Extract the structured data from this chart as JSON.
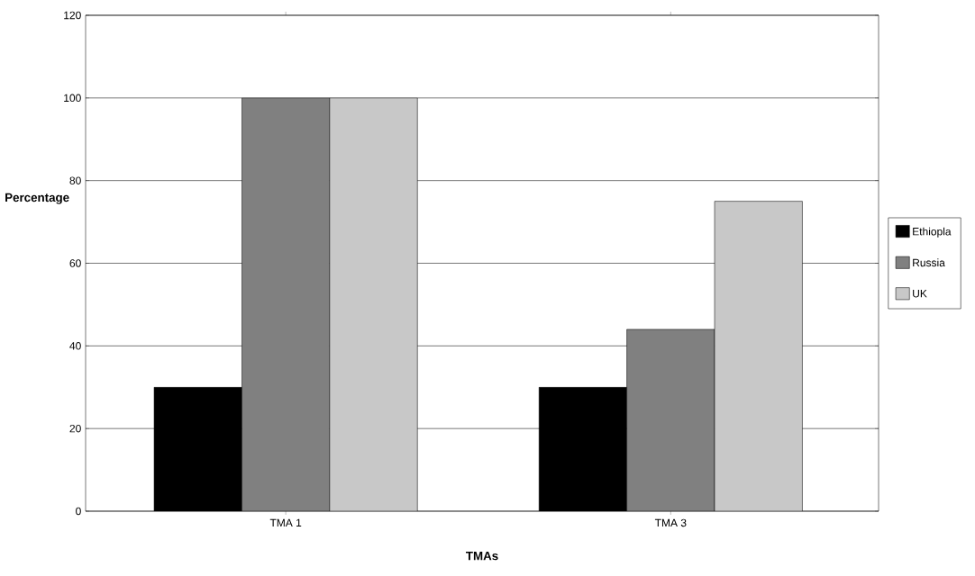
{
  "chart_data": {
    "type": "bar",
    "xlabel": "TMAs",
    "ylabel": "Percentage",
    "categories": [
      "TMA 1",
      "TMA 3"
    ],
    "series": [
      {
        "name": "Ethiopla",
        "color": "#000000",
        "values": [
          30,
          30
        ]
      },
      {
        "name": "Russia",
        "color": "#808080",
        "values": [
          100,
          44
        ]
      },
      {
        "name": "UK",
        "color": "#c8c8c8",
        "values": [
          100,
          75
        ]
      }
    ],
    "ylim": [
      0,
      120
    ],
    "yticks": [
      0,
      20,
      40,
      60,
      80,
      100,
      120
    ],
    "grid": "y",
    "legend": "right"
  }
}
